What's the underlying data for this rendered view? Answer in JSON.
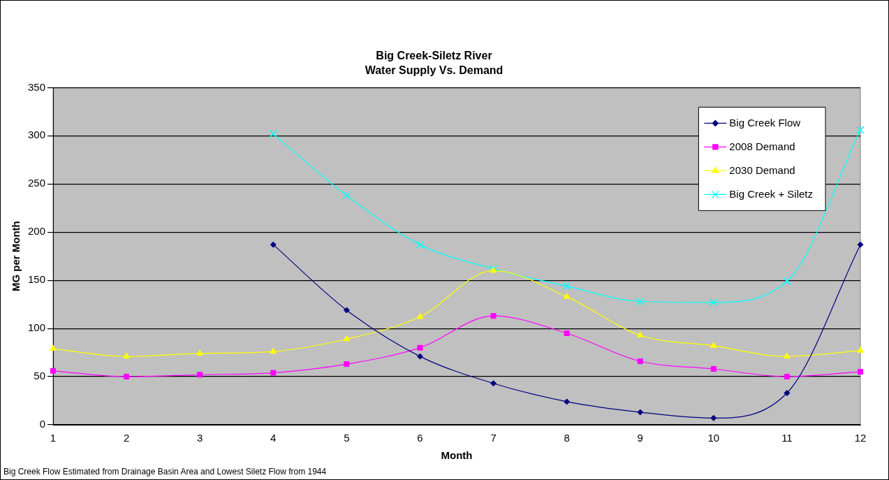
{
  "chart_data": {
    "type": "line",
    "title": "Big Creek-Siletz River",
    "subtitle": "Water Supply Vs. Demand",
    "xlabel": "Month",
    "ylabel": "MG per Month",
    "categories": [
      "1",
      "2",
      "3",
      "4",
      "5",
      "6",
      "7",
      "8",
      "9",
      "10",
      "11",
      "12"
    ],
    "series": [
      {
        "name": "Big Creek Flow",
        "color": "#000080",
        "marker": "diamond",
        "values": [
          null,
          null,
          null,
          187,
          119,
          71,
          43,
          24,
          13,
          7,
          33,
          187
        ]
      },
      {
        "name": "2008 Demand",
        "color": "#ff00ff",
        "marker": "square",
        "values": [
          56,
          50,
          52,
          54,
          63,
          80,
          113,
          95,
          66,
          58,
          50,
          55
        ]
      },
      {
        "name": "2030 Demand",
        "color": "#ffff00",
        "marker": "triangle",
        "values": [
          79,
          71,
          74,
          76,
          89,
          112,
          160,
          133,
          93,
          82,
          71,
          77
        ]
      },
      {
        "name": "Big Creek + Siletz",
        "color": "#00ffff",
        "marker": "cross",
        "values": [
          null,
          null,
          null,
          302,
          238,
          187,
          162,
          144,
          128,
          127,
          149,
          306
        ]
      }
    ],
    "ylim": [
      0,
      350
    ],
    "yticks": [
      0,
      50,
      100,
      150,
      200,
      250,
      300,
      350
    ],
    "grid": "y",
    "legend": "top right",
    "annotations": [
      "Big Creek Flow Estimated from Drainage Basin Area and Lowest Siletz Flow from 1944"
    ]
  }
}
